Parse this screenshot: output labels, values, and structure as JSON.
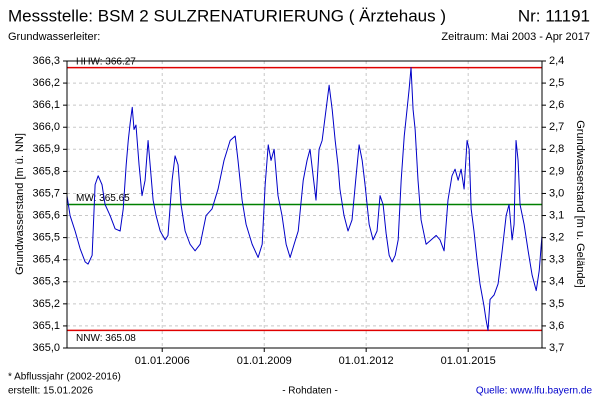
{
  "header": {
    "title": "Messstelle: BSM 2 SULZRENATURIERUNG ( Ärztehaus )",
    "number": "Nr: 11191",
    "aquifer": "Grundwasserleiter:",
    "period": "Zeitraum: Mai 2003 - Apr 2017"
  },
  "footer": {
    "note": "* Abflussjahr (2002-2016)",
    "created": "erstellt:  15.01.2026",
    "status": "- Rohdaten -",
    "source": "Quelle: www.lfu.bayern.de"
  },
  "chart_data": {
    "type": "line",
    "y_label": "Grundwasserstand [m ü. NN]",
    "y2_label": "Grundwasserstand [m u. Gelände]",
    "xlim": [
      "2003-03-15",
      "2017-03-04"
    ],
    "xticks": [
      {
        "value": "2006-01-01",
        "label": "01.01.2006"
      },
      {
        "value": "2009-01-01",
        "label": "01.01.2009"
      },
      {
        "value": "2012-01-01",
        "label": "01.01.2012"
      },
      {
        "value": "2015-01-01",
        "label": "01.01.2015"
      }
    ],
    "ylim": [
      365.0,
      366.3
    ],
    "yticks": [
      {
        "value": 365.0,
        "label": "365,0"
      },
      {
        "value": 365.1,
        "label": "365,1"
      },
      {
        "value": 365.2,
        "label": "365,2"
      },
      {
        "value": 365.3,
        "label": "365,3"
      },
      {
        "value": 365.4,
        "label": "365,4"
      },
      {
        "value": 365.5,
        "label": "365,5"
      },
      {
        "value": 365.6,
        "label": "365,6"
      },
      {
        "value": 365.7,
        "label": "365,7"
      },
      {
        "value": 365.8,
        "label": "365,8"
      },
      {
        "value": 365.9,
        "label": "365,9"
      },
      {
        "value": 366.0,
        "label": "366,0"
      },
      {
        "value": 366.1,
        "label": "366,1"
      },
      {
        "value": 366.2,
        "label": "366,2"
      },
      {
        "value": 366.3,
        "label": "366,3"
      }
    ],
    "y2lim": [
      3.7,
      2.4
    ],
    "y2ticks": [
      {
        "value": 2.4,
        "label": "2,4"
      },
      {
        "value": 2.5,
        "label": "2,5"
      },
      {
        "value": 2.6,
        "label": "2,6"
      },
      {
        "value": 2.7,
        "label": "2,7"
      },
      {
        "value": 2.8,
        "label": "2,8"
      },
      {
        "value": 2.9,
        "label": "2,9"
      },
      {
        "value": 3.0,
        "label": "3,0"
      },
      {
        "value": 3.1,
        "label": "3,1"
      },
      {
        "value": 3.2,
        "label": "3,2"
      },
      {
        "value": 3.3,
        "label": "3,3"
      },
      {
        "value": 3.4,
        "label": "3,4"
      },
      {
        "value": 3.5,
        "label": "3,5"
      },
      {
        "value": 3.6,
        "label": "3,6"
      },
      {
        "value": 3.7,
        "label": "3,7"
      }
    ],
    "grid": true,
    "reference_lines": [
      {
        "label": "HHW: 366.27",
        "value": 366.27,
        "color": "#e00000"
      },
      {
        "label": "MW: 365.65",
        "value": 365.65,
        "color": "#008000"
      },
      {
        "label": "NNW: 365.08",
        "value": 365.08,
        "color": "#e00000"
      }
    ],
    "x": [
      "2003-03-15",
      "2003-04-17",
      "2003-06-10",
      "2003-08-03",
      "2003-09-26",
      "2003-10-27",
      "2003-12-10",
      "2004-01-11",
      "2004-02-13",
      "2004-03-25",
      "2004-04-27",
      "2004-06-20",
      "2004-08-13",
      "2004-10-06",
      "2004-11-08",
      "2004-12-10",
      "2005-01-01",
      "2005-01-22",
      "2005-02-13",
      "2005-03-04",
      "2005-03-25",
      "2005-04-27",
      "2005-05-29",
      "2005-07-01",
      "2005-08-02",
      "2005-08-24",
      "2005-09-25",
      "2005-10-27",
      "2005-12-10",
      "2006-02-02",
      "2006-03-04",
      "2006-04-17",
      "2006-05-19",
      "2006-06-20",
      "2006-07-22",
      "2006-09-04",
      "2006-10-27",
      "2006-12-20",
      "2007-02-13",
      "2007-04-17",
      "2007-06-20",
      "2007-08-24",
      "2007-10-27",
      "2008-01-01",
      "2008-02-24",
      "2008-03-25",
      "2008-05-08",
      "2008-06-20",
      "2008-08-24",
      "2008-10-27",
      "2008-12-10",
      "2009-01-11",
      "2009-02-13",
      "2009-03-15",
      "2009-04-17",
      "2009-05-29",
      "2009-07-11",
      "2009-08-24",
      "2009-10-06",
      "2009-11-18",
      "2010-01-01",
      "2010-02-24",
      "2010-04-06",
      "2010-05-08",
      "2010-06-10",
      "2010-07-11",
      "2010-08-13",
      "2010-09-15",
      "2010-10-27",
      "2010-11-29",
      "2011-01-01",
      "2011-02-02",
      "2011-03-04",
      "2011-03-25",
      "2011-05-08",
      "2011-06-20",
      "2011-08-02",
      "2011-09-15",
      "2011-10-17",
      "2011-11-19",
      "2011-12-20",
      "2012-02-02",
      "2012-03-15",
      "2012-04-27",
      "2012-05-29",
      "2012-07-01",
      "2012-08-02",
      "2012-09-04",
      "2012-10-06",
      "2012-11-08",
      "2012-12-10",
      "2013-01-11",
      "2013-02-13",
      "2013-03-15",
      "2013-04-06",
      "2013-04-27",
      "2013-05-19",
      "2013-06-10",
      "2013-07-11",
      "2013-08-13",
      "2013-10-06",
      "2013-11-29",
      "2014-01-22",
      "2014-03-04",
      "2014-04-17",
      "2014-05-29",
      "2014-07-11",
      "2014-08-13",
      "2014-09-15",
      "2014-10-17",
      "2014-11-18",
      "2014-12-20",
      "2015-01-11",
      "2015-02-02",
      "2015-03-04",
      "2015-04-06",
      "2015-05-08",
      "2015-06-20",
      "2015-07-11",
      "2015-08-02",
      "2015-08-24",
      "2015-10-06",
      "2015-11-18",
      "2016-01-01",
      "2016-02-13",
      "2016-03-15",
      "2016-04-17",
      "2016-05-08",
      "2016-05-29",
      "2016-06-20",
      "2016-07-11",
      "2016-08-24",
      "2016-10-06",
      "2016-11-18",
      "2017-01-01",
      "2017-02-02",
      "2017-03-04"
    ],
    "series": [
      {
        "color": "#0000c8",
        "values": [
          365.69,
          365.6,
          365.53,
          365.45,
          365.39,
          365.38,
          365.42,
          365.74,
          365.78,
          365.74,
          365.65,
          365.6,
          365.54,
          365.53,
          365.63,
          365.83,
          365.94,
          366.02,
          366.09,
          365.99,
          366.01,
          365.83,
          365.69,
          365.76,
          365.94,
          365.83,
          365.67,
          365.6,
          365.53,
          365.49,
          365.51,
          365.76,
          365.87,
          365.83,
          365.65,
          365.53,
          365.47,
          365.44,
          365.47,
          365.6,
          365.63,
          365.72,
          365.85,
          365.94,
          365.96,
          365.85,
          365.67,
          365.56,
          365.47,
          365.41,
          365.47,
          365.74,
          365.92,
          365.85,
          365.9,
          365.69,
          365.6,
          365.47,
          365.41,
          365.47,
          365.53,
          365.76,
          365.85,
          365.9,
          365.78,
          365.67,
          365.9,
          365.94,
          366.08,
          366.19,
          366.08,
          365.94,
          365.83,
          365.72,
          365.6,
          365.53,
          365.58,
          365.78,
          365.92,
          365.85,
          365.74,
          365.56,
          365.49,
          365.53,
          365.69,
          365.65,
          365.52,
          365.42,
          365.39,
          365.42,
          365.49,
          365.76,
          365.96,
          366.08,
          366.17,
          366.27,
          366.08,
          365.99,
          365.76,
          365.58,
          365.47,
          365.49,
          365.51,
          365.49,
          365.44,
          365.67,
          365.78,
          365.81,
          365.76,
          365.81,
          365.72,
          365.94,
          365.9,
          365.63,
          365.53,
          365.4,
          365.29,
          365.19,
          365.13,
          365.08,
          365.22,
          365.24,
          365.29,
          365.44,
          365.6,
          365.65,
          365.49,
          365.56,
          365.94,
          365.85,
          365.65,
          365.56,
          365.44,
          365.33,
          365.26,
          365.35,
          365.51
        ]
      }
    ]
  }
}
